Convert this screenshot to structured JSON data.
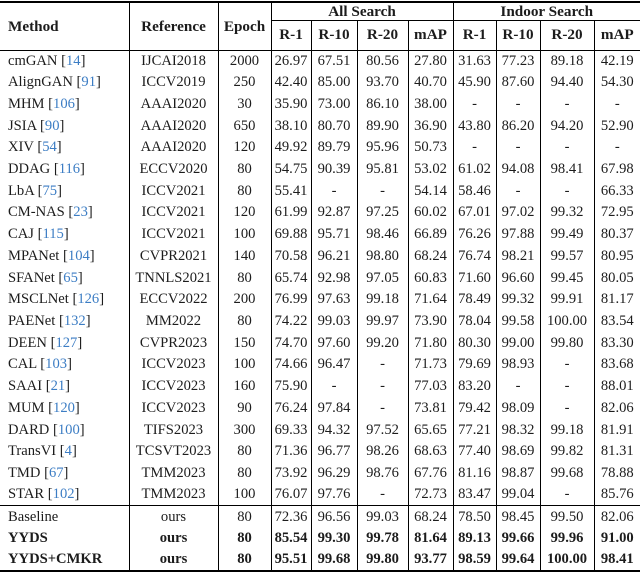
{
  "colors": {
    "text": "#1c1c1c",
    "citation_link": "#3c7dc4",
    "rule": "#000000",
    "background": "#ffffff"
  },
  "table": {
    "columns": {
      "method": "Method",
      "reference": "Reference",
      "epoch": "Epoch"
    },
    "groups": [
      {
        "label": "All Search",
        "metrics": [
          "R-1",
          "R-10",
          "R-20",
          "mAP"
        ]
      },
      {
        "label": "Indoor Search",
        "metrics": [
          "R-1",
          "R-10",
          "R-20",
          "mAP"
        ]
      }
    ],
    "rows": [
      {
        "method": "cmGAN",
        "cite": "14",
        "reference": "IJCAI2018",
        "epoch": "2000",
        "all": [
          "26.97",
          "67.51",
          "80.56",
          "27.80"
        ],
        "indoor": [
          "31.63",
          "77.23",
          "89.18",
          "42.19"
        ],
        "bold": false,
        "section": "related"
      },
      {
        "method": "AlignGAN",
        "cite": "91",
        "reference": "ICCV2019",
        "epoch": "250",
        "all": [
          "42.40",
          "85.00",
          "93.70",
          "40.70"
        ],
        "indoor": [
          "45.90",
          "87.60",
          "94.40",
          "54.30"
        ],
        "bold": false,
        "section": "related"
      },
      {
        "method": "MHM",
        "cite": "106",
        "reference": "AAAI2020",
        "epoch": "30",
        "all": [
          "35.90",
          "73.00",
          "86.10",
          "38.00"
        ],
        "indoor": [
          "-",
          "-",
          "-",
          "-"
        ],
        "bold": false,
        "section": "related"
      },
      {
        "method": "JSIA",
        "cite": "90",
        "reference": "AAAI2020",
        "epoch": "650",
        "all": [
          "38.10",
          "80.70",
          "89.90",
          "36.90"
        ],
        "indoor": [
          "43.80",
          "86.20",
          "94.20",
          "52.90"
        ],
        "bold": false,
        "section": "related"
      },
      {
        "method": "XIV",
        "cite": "54",
        "reference": "AAAI2020",
        "epoch": "120",
        "all": [
          "49.92",
          "89.79",
          "95.96",
          "50.73"
        ],
        "indoor": [
          "-",
          "-",
          "-",
          "-"
        ],
        "bold": false,
        "section": "related"
      },
      {
        "method": "DDAG",
        "cite": "116",
        "reference": "ECCV2020",
        "epoch": "80",
        "all": [
          "54.75",
          "90.39",
          "95.81",
          "53.02"
        ],
        "indoor": [
          "61.02",
          "94.08",
          "98.41",
          "67.98"
        ],
        "bold": false,
        "section": "related"
      },
      {
        "method": "LbA",
        "cite": "75",
        "reference": "ICCV2021",
        "epoch": "80",
        "all": [
          "55.41",
          "-",
          "-",
          "54.14"
        ],
        "indoor": [
          "58.46",
          "-",
          "-",
          "66.33"
        ],
        "bold": false,
        "section": "related"
      },
      {
        "method": "CM-NAS",
        "cite": "23",
        "reference": "ICCV2021",
        "epoch": "120",
        "all": [
          "61.99",
          "92.87",
          "97.25",
          "60.02"
        ],
        "indoor": [
          "67.01",
          "97.02",
          "99.32",
          "72.95"
        ],
        "bold": false,
        "section": "related"
      },
      {
        "method": "CAJ",
        "cite": "115",
        "reference": "ICCV2021",
        "epoch": "100",
        "all": [
          "69.88",
          "95.71",
          "98.46",
          "66.89"
        ],
        "indoor": [
          "76.26",
          "97.88",
          "99.49",
          "80.37"
        ],
        "bold": false,
        "section": "related"
      },
      {
        "method": "MPANet",
        "cite": "104",
        "reference": "CVPR2021",
        "epoch": "140",
        "all": [
          "70.58",
          "96.21",
          "98.80",
          "68.24"
        ],
        "indoor": [
          "76.74",
          "98.21",
          "99.57",
          "80.95"
        ],
        "bold": false,
        "section": "related"
      },
      {
        "method": "SFANet",
        "cite": "65",
        "reference": "TNNLS2021",
        "epoch": "80",
        "all": [
          "65.74",
          "92.98",
          "97.05",
          "60.83"
        ],
        "indoor": [
          "71.60",
          "96.60",
          "99.45",
          "80.05"
        ],
        "bold": false,
        "section": "related"
      },
      {
        "method": "MSCLNet",
        "cite": "126",
        "reference": "ECCV2022",
        "epoch": "200",
        "all": [
          "76.99",
          "97.63",
          "99.18",
          "71.64"
        ],
        "indoor": [
          "78.49",
          "99.32",
          "99.91",
          "81.17"
        ],
        "bold": false,
        "section": "related"
      },
      {
        "method": "PAENet",
        "cite": "132",
        "reference": "MM2022",
        "epoch": "80",
        "all": [
          "74.22",
          "99.03",
          "99.97",
          "73.90"
        ],
        "indoor": [
          "78.04",
          "99.58",
          "100.00",
          "83.54"
        ],
        "bold": false,
        "section": "related"
      },
      {
        "method": "DEEN",
        "cite": "127",
        "reference": "CVPR2023",
        "epoch": "150",
        "all": [
          "74.70",
          "97.60",
          "99.20",
          "71.80"
        ],
        "indoor": [
          "80.30",
          "99.00",
          "99.80",
          "83.30"
        ],
        "bold": false,
        "section": "related"
      },
      {
        "method": "CAL",
        "cite": "103",
        "reference": "ICCV2023",
        "epoch": "100",
        "all": [
          "74.66",
          "96.47",
          "-",
          "71.73"
        ],
        "indoor": [
          "79.69",
          "98.93",
          "-",
          "83.68"
        ],
        "bold": false,
        "section": "related"
      },
      {
        "method": "SAAI",
        "cite": "21",
        "reference": "ICCV2023",
        "epoch": "160",
        "all": [
          "75.90",
          "-",
          "-",
          "77.03"
        ],
        "indoor": [
          "83.20",
          "-",
          "-",
          "88.01"
        ],
        "bold": false,
        "section": "related"
      },
      {
        "method": "MUM",
        "cite": "120",
        "reference": "ICCV2023",
        "epoch": "90",
        "all": [
          "76.24",
          "97.84",
          "-",
          "73.81"
        ],
        "indoor": [
          "79.42",
          "98.09",
          "-",
          "82.06"
        ],
        "bold": false,
        "section": "related"
      },
      {
        "method": "DARD",
        "cite": "100",
        "reference": "TIFS2023",
        "epoch": "300",
        "all": [
          "69.33",
          "94.32",
          "97.52",
          "65.65"
        ],
        "indoor": [
          "77.21",
          "98.32",
          "99.18",
          "81.91"
        ],
        "bold": false,
        "section": "related"
      },
      {
        "method": "TransVI",
        "cite": "4",
        "reference": "TCSVT2023",
        "epoch": "80",
        "all": [
          "71.36",
          "96.77",
          "98.26",
          "68.63"
        ],
        "indoor": [
          "77.40",
          "98.69",
          "99.82",
          "81.31"
        ],
        "bold": false,
        "section": "related"
      },
      {
        "method": "TMD",
        "cite": "67",
        "reference": "TMM2023",
        "epoch": "80",
        "all": [
          "73.92",
          "96.29",
          "98.76",
          "67.76"
        ],
        "indoor": [
          "81.16",
          "98.87",
          "99.68",
          "78.88"
        ],
        "bold": false,
        "section": "related"
      },
      {
        "method": "STAR",
        "cite": "102",
        "reference": "TMM2023",
        "epoch": "100",
        "all": [
          "76.07",
          "97.76",
          "-",
          "72.73"
        ],
        "indoor": [
          "83.47",
          "99.04",
          "-",
          "85.76"
        ],
        "bold": false,
        "section": "related"
      },
      {
        "method": "Baseline",
        "cite": "",
        "reference": "ours",
        "epoch": "80",
        "all": [
          "72.36",
          "96.56",
          "99.03",
          "68.24"
        ],
        "indoor": [
          "78.50",
          "98.45",
          "99.50",
          "82.06"
        ],
        "bold": false,
        "section": "ours"
      },
      {
        "method": "YYDS",
        "cite": "",
        "reference": "ours",
        "epoch": "80",
        "all": [
          "85.54",
          "99.30",
          "99.78",
          "81.64"
        ],
        "indoor": [
          "89.13",
          "99.66",
          "99.96",
          "91.00"
        ],
        "bold": true,
        "section": "ours"
      },
      {
        "method": "YYDS+CMKR",
        "cite": "",
        "reference": "ours",
        "epoch": "80",
        "all": [
          "95.51",
          "99.68",
          "99.80",
          "93.77"
        ],
        "indoor": [
          "98.59",
          "99.64",
          "100.00",
          "98.41"
        ],
        "bold": true,
        "section": "ours"
      }
    ]
  }
}
